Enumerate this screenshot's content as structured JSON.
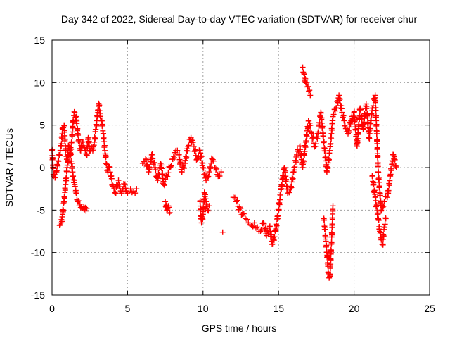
{
  "chart_data": {
    "type": "scatter",
    "title": "Day 342 of 2022, Sidereal Day-to-day VTEC variation (SDTVAR) for receiver chur",
    "xlabel": "GPS time / hours",
    "ylabel": "SDTVAR / TECUs",
    "xlim": [
      0,
      25
    ],
    "ylim": [
      -15,
      15
    ],
    "xticks": [
      "0",
      "5",
      "10",
      "15",
      "20",
      "25"
    ],
    "yticks": [
      "-15",
      "-10",
      "-5",
      "0",
      "5",
      "10",
      "15"
    ],
    "grid": true,
    "marker": "+",
    "color": "#ff0000",
    "series": [
      {
        "name": "SDTVAR",
        "x": [
          0.0,
          0.1,
          0.2,
          0.3,
          0.4,
          0.5,
          0.6,
          0.7,
          0.8,
          0.9,
          1.0,
          1.1,
          1.2,
          1.3,
          1.4,
          1.5,
          1.6,
          1.7,
          1.8,
          1.9,
          2.0,
          2.1,
          2.2,
          2.3,
          2.4,
          2.5,
          2.6,
          2.7,
          2.8,
          2.9,
          3.0,
          3.1,
          3.2,
          3.3,
          3.4,
          3.5,
          3.6,
          3.7,
          3.8,
          3.9,
          4.0,
          4.1,
          4.2,
          4.3,
          4.4,
          4.5,
          4.6,
          4.7,
          4.8,
          4.9,
          5.0,
          5.2,
          5.4,
          5.6,
          0.5,
          0.6,
          0.7,
          0.8,
          0.9,
          1.0,
          1.1,
          1.2,
          1.3,
          1.4,
          1.5,
          1.6,
          1.7,
          1.8,
          1.9,
          2.0,
          2.1,
          2.2,
          2.3,
          6.0,
          6.2,
          6.4,
          6.6,
          6.8,
          7.0,
          7.2,
          7.4,
          7.6,
          7.8,
          8.0,
          8.2,
          8.4,
          8.6,
          8.8,
          9.0,
          9.2,
          9.4,
          9.6,
          9.8,
          10.0,
          10.2,
          10.4,
          10.6,
          10.8,
          11.0,
          11.2,
          7.5,
          7.6,
          7.7,
          7.8,
          9.8,
          9.9,
          10.0,
          10.1,
          10.2,
          10.3,
          10.4,
          11.3,
          12.0,
          12.2,
          12.6,
          12.8,
          13.0,
          13.2,
          13.4,
          13.6,
          13.8,
          14.0,
          14.2,
          14.4,
          14.6,
          14.8,
          15.0,
          15.2,
          15.4,
          15.6,
          15.8,
          16.0,
          16.2,
          16.4,
          16.6,
          16.8,
          17.0,
          17.2,
          17.4,
          17.6,
          17.8,
          18.0,
          18.2,
          18.4,
          18.6,
          18.8,
          19.0,
          19.2,
          19.4,
          19.6,
          19.8,
          20.0,
          20.2,
          20.4,
          20.6,
          20.8,
          21.0,
          21.2,
          21.4,
          21.6,
          21.8,
          22.0,
          22.2,
          22.4,
          22.6,
          22.8,
          16.6,
          16.7,
          16.8,
          16.9,
          17.0,
          17.1,
          18.0,
          18.1,
          18.2,
          18.3,
          18.4,
          18.5,
          18.6,
          21.2,
          21.4,
          21.6,
          21.7,
          21.8,
          21.9,
          22.0,
          22.1
        ],
        "y": [
          2.0,
          -1.0,
          -1.2,
          -0.5,
          0.8,
          1.5,
          2.5,
          4.5,
          5.0,
          2.0,
          1.0,
          2.5,
          1.5,
          3.0,
          5.5,
          6.5,
          6.0,
          4.0,
          3.0,
          2.0,
          3.0,
          2.5,
          2.0,
          1.5,
          3.5,
          2.0,
          2.5,
          2.0,
          3.0,
          4.5,
          6.0,
          7.5,
          6.0,
          5.5,
          4.0,
          2.0,
          0.5,
          -0.5,
          0.0,
          -1.0,
          -2.0,
          -2.5,
          -3.0,
          -2.0,
          -1.5,
          -2.5,
          -3.0,
          -2.5,
          -2.0,
          -2.8,
          -3.0,
          -2.5,
          -2.8,
          -2.5,
          -6.8,
          -6.5,
          -5.5,
          -4.0,
          -2.0,
          0.0,
          1.5,
          2.0,
          0.5,
          -1.0,
          -2.0,
          -3.0,
          -4.0,
          -4.5,
          -4.7,
          -4.8,
          -4.6,
          -4.7,
          -4.8,
          0.5,
          1.0,
          -0.5,
          1.5,
          0.0,
          -1.5,
          0.5,
          -2.0,
          -1.0,
          0.0,
          1.0,
          2.0,
          1.5,
          -0.5,
          0.5,
          2.5,
          3.5,
          2.5,
          1.0,
          2.0,
          0.0,
          -1.5,
          -0.5,
          1.0,
          0.0,
          -1.0,
          -0.5,
          -4.0,
          -5.0,
          -4.5,
          -5.3,
          -4.0,
          -6.5,
          -5.5,
          -3.0,
          -4.0,
          -5.0,
          -4.5,
          -7.6,
          -3.5,
          -4.0,
          -5.5,
          -6.0,
          -6.5,
          -6.8,
          -6.5,
          -7.0,
          -7.5,
          -6.5,
          -8.0,
          -7.0,
          -9.0,
          -7.5,
          -5.0,
          -2.0,
          0.0,
          -3.0,
          -2.5,
          -0.5,
          1.5,
          2.5,
          0.0,
          3.0,
          5.5,
          4.0,
          2.5,
          4.0,
          6.5,
          3.0,
          -0.5,
          2.0,
          6.0,
          7.0,
          8.5,
          6.5,
          5.0,
          4.0,
          5.5,
          6.5,
          2.5,
          7.0,
          4.5,
          7.5,
          3.5,
          7.0,
          8.5,
          -0.5,
          -5.0,
          -4.0,
          -3.5,
          -1.0,
          1.5,
          0.0,
          11.8,
          11.0,
          10.0,
          9.5,
          9.0,
          8.5,
          -6.0,
          -8.0,
          -10.0,
          -12.5,
          -12.8,
          -9.0,
          -4.5,
          -1.0,
          -3.5,
          -6.0,
          -7.5,
          -8.5,
          -9.0,
          -7.0,
          -6.0
        ]
      }
    ]
  }
}
